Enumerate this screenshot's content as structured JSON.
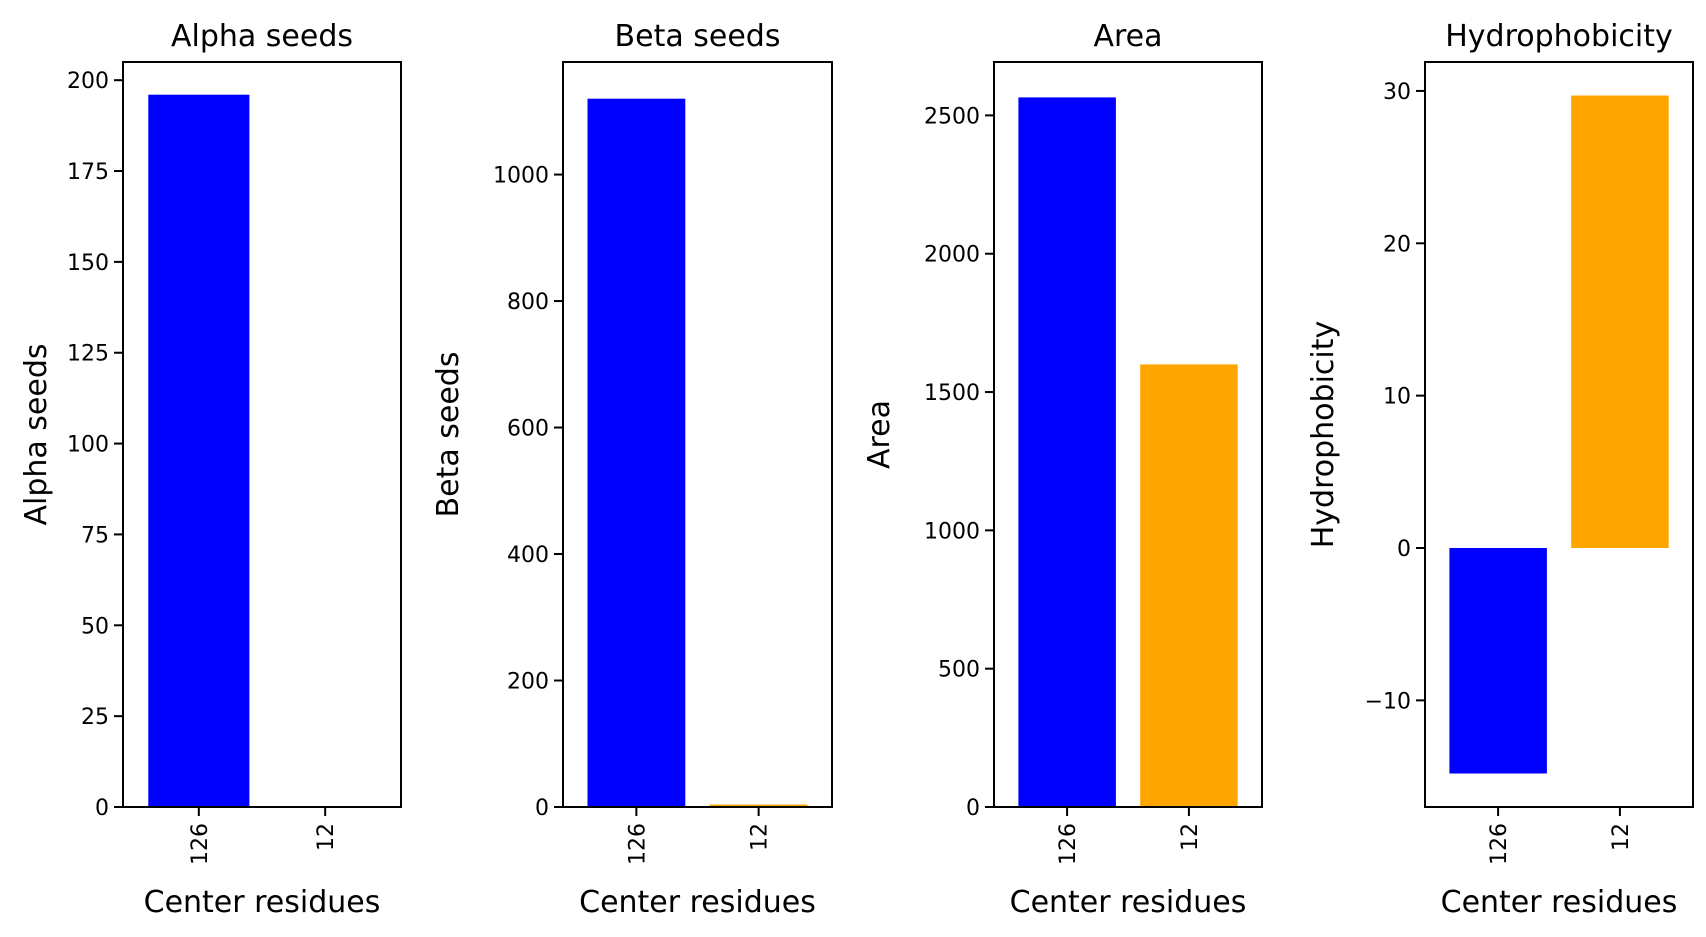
{
  "chart_data": [
    {
      "type": "bar",
      "title": "Alpha seeds",
      "xlabel": "Center residues",
      "ylabel": "Alpha seeds",
      "categories": [
        "126",
        "12"
      ],
      "values": [
        196,
        0
      ],
      "colors": [
        "#0000ff",
        "#ffa500"
      ],
      "ylim": [
        0,
        205
      ],
      "yticks": [
        0,
        25,
        50,
        75,
        100,
        125,
        150,
        175,
        200
      ],
      "ytick_labels": [
        "0",
        "25",
        "50",
        "75",
        "100",
        "125",
        "150",
        "175",
        "200"
      ],
      "grid": false
    },
    {
      "type": "bar",
      "title": "Beta seeds",
      "xlabel": "Center residues",
      "ylabel": "Beta seeds",
      "categories": [
        "126",
        "12"
      ],
      "values": [
        1120,
        4
      ],
      "colors": [
        "#0000ff",
        "#ffa500"
      ],
      "ylim": [
        0,
        1178
      ],
      "yticks": [
        0,
        200,
        400,
        600,
        800,
        1000
      ],
      "ytick_labels": [
        "0",
        "200",
        "400",
        "600",
        "800",
        "1000"
      ],
      "grid": false
    },
    {
      "type": "bar",
      "title": "Area",
      "xlabel": "Center residues",
      "ylabel": "Area",
      "categories": [
        "126",
        "12"
      ],
      "values": [
        2565,
        1600
      ],
      "colors": [
        "#0000ff",
        "#ffa500"
      ],
      "ylim": [
        0,
        2693
      ],
      "yticks": [
        0,
        500,
        1000,
        1500,
        2000,
        2500
      ],
      "ytick_labels": [
        "0",
        "500",
        "1000",
        "1500",
        "2000",
        "2500"
      ],
      "grid": false
    },
    {
      "type": "bar",
      "title": "Hydrophobicity",
      "xlabel": "Center residues",
      "ylabel": "Hydrophobicity",
      "categories": [
        "126",
        "12"
      ],
      "values": [
        -14.8,
        29.7
      ],
      "colors": [
        "#0000ff",
        "#ffa500"
      ],
      "ylim": [
        -17.0,
        31.9
      ],
      "yticks": [
        -10,
        0,
        10,
        20,
        30
      ],
      "ytick_labels": [
        "−10",
        "0",
        "10",
        "20",
        "30"
      ],
      "grid": false
    }
  ]
}
